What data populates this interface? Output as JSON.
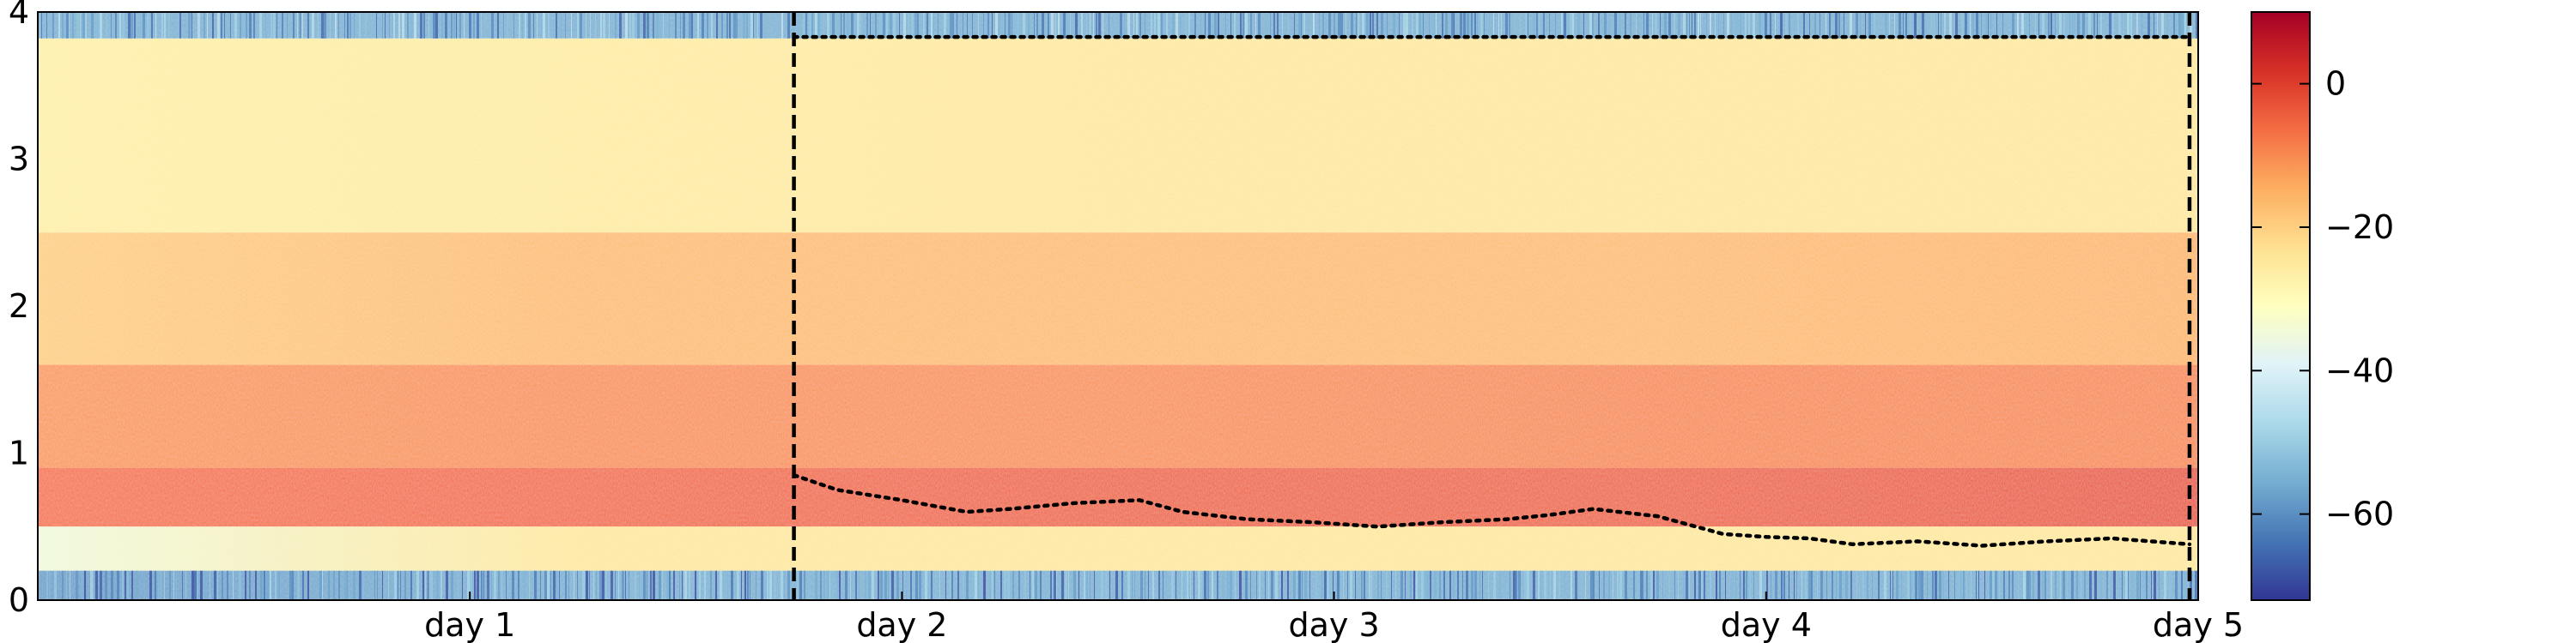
{
  "chart_data": {
    "type": "heatmap",
    "title": "",
    "xlabel": "",
    "ylabel": "",
    "x_tick_labels": [
      "day 1",
      "day 2",
      "day 3",
      "day 4",
      "day 5"
    ],
    "x_tick_values": [
      1,
      2,
      3,
      4,
      5
    ],
    "xlim": [
      0,
      5
    ],
    "ylim": [
      0,
      4
    ],
    "y_tick_labels": [
      "0",
      "1",
      "2",
      "3",
      "4"
    ],
    "y_tick_values": [
      0,
      1,
      2,
      3,
      4
    ],
    "colorbar": {
      "colormap": "RdYlBu_r",
      "range": [
        -72,
        10
      ],
      "tick_labels": [
        "0",
        "−20",
        "−40",
        "−60"
      ],
      "tick_values": [
        0,
        -20,
        -40,
        -60
      ]
    },
    "highlight_region": {
      "x_start": 1.75,
      "x_end": 4.98,
      "y_top": 3.83,
      "style": "dashed vertical edges, dotted top"
    },
    "dotted_line": {
      "x": [
        1.75,
        1.85,
        2.0,
        2.15,
        2.25,
        2.4,
        2.55,
        2.65,
        2.8,
        2.95,
        3.1,
        3.25,
        3.4,
        3.5,
        3.6,
        3.75,
        3.9,
        4.0,
        4.1,
        4.2,
        4.35,
        4.5,
        4.65,
        4.8,
        4.98
      ],
      "y": [
        0.85,
        0.75,
        0.68,
        0.6,
        0.62,
        0.66,
        0.68,
        0.6,
        0.55,
        0.53,
        0.5,
        0.53,
        0.55,
        0.58,
        0.62,
        0.57,
        0.45,
        0.43,
        0.42,
        0.38,
        0.4,
        0.37,
        0.4,
        0.42,
        0.38
      ]
    },
    "rows": [
      {
        "y": [
          3.82,
          4.0
        ],
        "values": [
          -55,
          -55,
          -55,
          -55,
          -55
        ]
      },
      {
        "y": [
          2.5,
          3.82
        ],
        "values": [
          -27,
          -26,
          -25,
          -25,
          -25
        ]
      },
      {
        "y": [
          1.6,
          2.5
        ],
        "values": [
          -20,
          -17,
          -17,
          -17,
          -16
        ]
      },
      {
        "y": [
          0.9,
          1.6
        ],
        "values": [
          -12,
          -11,
          -11,
          -10,
          -10
        ]
      },
      {
        "y": [
          0.5,
          0.9
        ],
        "values": [
          -7,
          -6,
          -5,
          -5,
          -3
        ]
      },
      {
        "y": [
          0.2,
          0.5
        ],
        "values": [
          -35,
          -25,
          -25,
          -25,
          -25
        ]
      },
      {
        "y": [
          0.0,
          0.2
        ],
        "values": [
          -58,
          -55,
          -55,
          -55,
          -55
        ]
      }
    ]
  }
}
